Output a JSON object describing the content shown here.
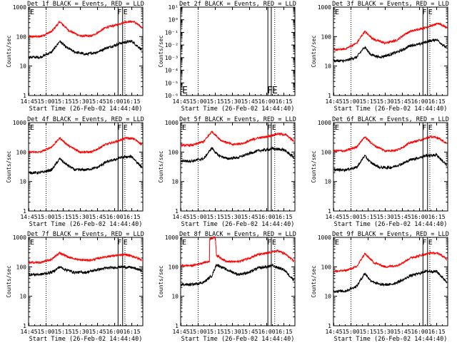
{
  "x_tick_labels": [
    "14:45",
    "15:00",
    "15:15",
    "15:30",
    "15:45",
    "16:00",
    "16:15"
  ],
  "xlabel": "Start Time (26-Feb-02 14:44:40)",
  "ylabel": "Counts/sec",
  "colors": {
    "events": "#000000",
    "lld": "#ff0000",
    "axes": "#000000",
    "background": "#ffffff"
  },
  "marker_labels": {
    "start": "E",
    "f": "F",
    "e": "E"
  },
  "chart_data": [
    {
      "type": "line",
      "title": "Det 1f BLACK = Events, RED = LLD",
      "xlim": [
        "14:44:40",
        "16:24:40"
      ],
      "ylog": true,
      "ylim": [
        1,
        1000
      ],
      "yticks": [
        1,
        10,
        100,
        1000
      ],
      "ytick_labels": [
        "1",
        "10",
        "100",
        "1000"
      ],
      "markers": {
        "dotted": "15:00",
        "solid": [
          "16:03",
          "16:07"
        ],
        "dotted_right": "16:09"
      },
      "series": [
        {
          "color": "red",
          "x": [
            "14:45",
            "14:55",
            "15:05",
            "15:12",
            "15:20",
            "15:30",
            "15:40",
            "15:47",
            "15:52",
            "16:00",
            "16:10",
            "16:17",
            "16:24"
          ],
          "y": [
            100,
            100,
            150,
            320,
            160,
            105,
            105,
            150,
            200,
            240,
            320,
            320,
            200
          ]
        },
        {
          "color": "black",
          "x": [
            "14:45",
            "14:55",
            "15:05",
            "15:12",
            "15:17",
            "15:25",
            "15:35",
            "15:45",
            "15:52",
            "16:00",
            "16:05",
            "16:15",
            "16:24"
          ],
          "y": [
            20,
            20,
            30,
            70,
            45,
            30,
            25,
            30,
            40,
            50,
            60,
            70,
            35
          ]
        }
      ]
    },
    {
      "type": "line",
      "title": "Det 2f BLACK = Events, RED = LLD",
      "xlim": [
        "14:44:40",
        "16:24:40"
      ],
      "ylog": true,
      "ylim": [
        -6,
        1
      ],
      "yticks": [
        -6,
        -5,
        -4,
        -3,
        -2,
        -1,
        0,
        1
      ],
      "ytick_labels": [
        "10⁻⁶",
        "10⁻⁵",
        "10⁻⁴",
        "10⁻³",
        "10⁻²",
        "10⁻¹",
        "10⁰",
        "10¹"
      ],
      "markers": {
        "dotted": "15:00",
        "solid": [
          "16:01",
          "16:04"
        ],
        "dotted_right": "16:07"
      },
      "series": []
    },
    {
      "type": "line",
      "title": "Det 3f BLACK = Events, RED = LLD",
      "xlim": [
        "14:44:40",
        "16:24:40"
      ],
      "ylog": true,
      "ylim": [
        1,
        1000
      ],
      "yticks": [
        1,
        10,
        100,
        1000
      ],
      "ytick_labels": [
        "1",
        "10",
        "100",
        "1000"
      ],
      "markers": {
        "dotted": "15:00",
        "solid": [
          "16:03",
          "16:07"
        ],
        "dotted_right": "16:09"
      },
      "series": [
        {
          "color": "red",
          "x": [
            "14:45",
            "14:55",
            "15:05",
            "15:12",
            "15:20",
            "15:30",
            "15:40",
            "15:47",
            "15:52",
            "16:00",
            "16:10",
            "16:17",
            "16:24"
          ],
          "y": [
            35,
            38,
            60,
            150,
            80,
            60,
            75,
            120,
            150,
            180,
            230,
            280,
            200
          ]
        },
        {
          "color": "black",
          "x": [
            "14:45",
            "14:55",
            "15:05",
            "15:12",
            "15:17",
            "15:25",
            "15:35",
            "15:45",
            "15:52",
            "16:00",
            "16:05",
            "16:15",
            "16:24"
          ],
          "y": [
            15,
            15,
            20,
            45,
            25,
            20,
            25,
            35,
            50,
            55,
            65,
            80,
            40
          ]
        }
      ]
    },
    {
      "type": "line",
      "title": "Det 4f BLACK = Events, RED = LLD",
      "xlim": [
        "14:44:40",
        "16:24:40"
      ],
      "ylog": true,
      "ylim": [
        1,
        1000
      ],
      "yticks": [
        1,
        10,
        100,
        1000
      ],
      "ytick_labels": [
        "1",
        "10",
        "100",
        "1000"
      ],
      "markers": {
        "dotted": "15:00",
        "solid": [
          "16:03",
          "16:07"
        ],
        "dotted_right": "16:09"
      },
      "series": [
        {
          "color": "red",
          "x": [
            "14:45",
            "14:55",
            "15:05",
            "15:12",
            "15:20",
            "15:30",
            "15:40",
            "15:47",
            "15:52",
            "16:00",
            "16:10",
            "16:17",
            "16:24"
          ],
          "y": [
            100,
            100,
            150,
            300,
            160,
            100,
            100,
            140,
            180,
            220,
            300,
            280,
            180
          ]
        },
        {
          "color": "black",
          "x": [
            "14:45",
            "14:55",
            "15:05",
            "15:12",
            "15:17",
            "15:25",
            "15:35",
            "15:45",
            "15:52",
            "16:00",
            "16:05",
            "16:15",
            "16:24"
          ],
          "y": [
            20,
            20,
            25,
            60,
            40,
            25,
            25,
            30,
            45,
            55,
            65,
            70,
            30
          ]
        }
      ]
    },
    {
      "type": "line",
      "title": "Det 5f BLACK = Events, RED = LLD",
      "xlim": [
        "14:44:40",
        "16:24:40"
      ],
      "ylog": true,
      "ylim": [
        1,
        1000
      ],
      "yticks": [
        1,
        10,
        100,
        1000
      ],
      "ytick_labels": [
        "1",
        "10",
        "100",
        "1000"
      ],
      "markers": {
        "dotted": "15:00",
        "solid": [
          "16:01",
          "16:04"
        ],
        "dotted_right": "16:07"
      },
      "series": [
        {
          "color": "red",
          "x": [
            "14:45",
            "14:55",
            "15:05",
            "15:12",
            "15:20",
            "15:30",
            "15:40",
            "15:47",
            "15:52",
            "16:00",
            "16:10",
            "16:17",
            "16:24"
          ],
          "y": [
            170,
            170,
            230,
            500,
            250,
            180,
            200,
            260,
            300,
            330,
            420,
            380,
            230
          ]
        },
        {
          "color": "black",
          "x": [
            "14:45",
            "14:55",
            "15:05",
            "15:12",
            "15:17",
            "15:25",
            "15:35",
            "15:45",
            "15:52",
            "16:00",
            "16:05",
            "16:15",
            "16:24"
          ],
          "y": [
            50,
            50,
            60,
            140,
            80,
            60,
            65,
            90,
            110,
            120,
            130,
            120,
            65
          ]
        }
      ]
    },
    {
      "type": "line",
      "title": "Det 6f BLACK = Events, RED = LLD",
      "xlim": [
        "14:44:40",
        "16:24:40"
      ],
      "ylog": true,
      "ylim": [
        1,
        1000
      ],
      "yticks": [
        1,
        10,
        100,
        1000
      ],
      "ytick_labels": [
        "1",
        "10",
        "100",
        "1000"
      ],
      "markers": {
        "dotted": "15:00",
        "solid": [
          "16:03",
          "16:07"
        ],
        "dotted_right": "16:09"
      },
      "series": [
        {
          "color": "red",
          "x": [
            "14:45",
            "14:55",
            "15:05",
            "15:12",
            "15:20",
            "15:30",
            "15:40",
            "15:47",
            "15:52",
            "16:00",
            "16:10",
            "16:17",
            "16:24"
          ],
          "y": [
            110,
            110,
            150,
            330,
            170,
            110,
            115,
            160,
            210,
            250,
            330,
            300,
            190
          ]
        },
        {
          "color": "black",
          "x": [
            "14:45",
            "14:55",
            "15:05",
            "15:12",
            "15:17",
            "15:25",
            "15:35",
            "15:45",
            "15:52",
            "16:00",
            "16:05",
            "16:15",
            "16:24"
          ],
          "y": [
            25,
            25,
            30,
            75,
            45,
            30,
            30,
            40,
            55,
            65,
            75,
            80,
            35
          ]
        }
      ]
    },
    {
      "type": "line",
      "title": "Det 7f BLACK = Events, RED = LLD",
      "xlim": [
        "14:44:40",
        "16:24:40"
      ],
      "ylog": true,
      "ylim": [
        1,
        1000
      ],
      "yticks": [
        1,
        10,
        100,
        1000
      ],
      "ytick_labels": [
        "1",
        "10",
        "100",
        "1000"
      ],
      "markers": {
        "dotted": "15:00",
        "solid": [
          "16:03",
          "16:07"
        ],
        "dotted_right": "16:09"
      },
      "series": [
        {
          "color": "red",
          "x": [
            "14:45",
            "14:55",
            "15:05",
            "15:12",
            "15:20",
            "15:30",
            "15:40",
            "15:47",
            "15:52",
            "16:00",
            "16:10",
            "16:17",
            "16:24"
          ],
          "y": [
            140,
            140,
            180,
            300,
            210,
            170,
            170,
            200,
            220,
            240,
            260,
            220,
            170
          ]
        },
        {
          "color": "black",
          "x": [
            "14:45",
            "14:55",
            "15:05",
            "15:12",
            "15:17",
            "15:25",
            "15:35",
            "15:45",
            "15:52",
            "16:00",
            "16:05",
            "16:15",
            "16:24"
          ],
          "y": [
            55,
            55,
            65,
            100,
            80,
            65,
            65,
            80,
            90,
            95,
            100,
            95,
            75
          ]
        }
      ]
    },
    {
      "type": "line",
      "title": "Det 8f BLACK = Events, RED = LLD",
      "xlim": [
        "14:44:40",
        "16:24:40"
      ],
      "ylog": true,
      "ylim": [
        1,
        1000
      ],
      "yticks": [
        1,
        10,
        100,
        1000
      ],
      "ytick_labels": [
        "1",
        "10",
        "100",
        "1000"
      ],
      "markers": {
        "dotted": "15:00",
        "solid": [
          "16:01",
          "16:04"
        ],
        "dotted_right": "16:07"
      },
      "series": [
        {
          "color": "red",
          "x": [
            "14:45",
            "14:55",
            "15:05",
            "15:10",
            "15:10",
            "15:15",
            "15:16",
            "15:25",
            "15:35",
            "15:45",
            "15:52",
            "16:00",
            "16:10",
            "16:17",
            "16:24"
          ],
          "y": [
            110,
            110,
            140,
            150,
            900,
            1000,
            250,
            150,
            150,
            200,
            260,
            290,
            350,
            260,
            150
          ]
        },
        {
          "color": "black",
          "x": [
            "14:45",
            "14:55",
            "15:05",
            "15:12",
            "15:16",
            "15:25",
            "15:35",
            "15:45",
            "15:52",
            "16:00",
            "16:05",
            "16:15",
            "16:24"
          ],
          "y": [
            25,
            25,
            30,
            50,
            120,
            80,
            55,
            65,
            90,
            100,
            110,
            80,
            35
          ]
        }
      ]
    },
    {
      "type": "line",
      "title": "Det 9f BLACK = Events, RED = LLD",
      "xlim": [
        "14:44:40",
        "16:24:40"
      ],
      "ylog": true,
      "ylim": [
        1,
        1000
      ],
      "yticks": [
        1,
        10,
        100,
        1000
      ],
      "ytick_labels": [
        "1",
        "10",
        "100",
        "1000"
      ],
      "markers": {
        "dotted": "15:00",
        "solid": [
          "16:03",
          "16:07"
        ],
        "dotted_right": "16:09"
      },
      "series": [
        {
          "color": "red",
          "x": [
            "14:45",
            "14:55",
            "15:05",
            "15:12",
            "15:20",
            "15:30",
            "15:40",
            "15:47",
            "15:52",
            "16:00",
            "16:10",
            "16:17",
            "16:24"
          ],
          "y": [
            70,
            75,
            100,
            280,
            140,
            100,
            110,
            150,
            200,
            240,
            300,
            280,
            180
          ]
        },
        {
          "color": "black",
          "x": [
            "14:45",
            "14:55",
            "15:05",
            "15:12",
            "15:17",
            "15:25",
            "15:35",
            "15:45",
            "15:52",
            "16:00",
            "16:05",
            "16:15",
            "16:24"
          ],
          "y": [
            15,
            15,
            22,
            60,
            35,
            25,
            25,
            35,
            50,
            60,
            70,
            70,
            30
          ]
        }
      ]
    }
  ]
}
